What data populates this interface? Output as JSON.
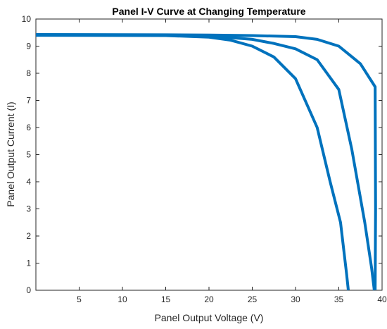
{
  "chart_data": {
    "type": "line",
    "title": "Panel I-V Curve at Changing Temperature",
    "xlabel": "Panel Output Voltage (V)",
    "ylabel": "Panel Output Current (I)",
    "xlim": [
      0,
      40
    ],
    "ylim": [
      0,
      10
    ],
    "xticks": [
      5,
      10,
      15,
      20,
      25,
      30,
      35,
      40
    ],
    "yticks": [
      0,
      1,
      2,
      3,
      4,
      5,
      6,
      7,
      8,
      9,
      10
    ],
    "grid": false,
    "line_color": "#0072BD",
    "series": [
      {
        "x": [
          0,
          15,
          20,
          22.5,
          25,
          27.5,
          30,
          32.5,
          34,
          35.2,
          35.9,
          36.1
        ],
        "y": [
          9.4,
          9.39,
          9.33,
          9.22,
          9.0,
          8.6,
          7.8,
          6.0,
          4.0,
          2.5,
          0.6,
          0
        ]
      },
      {
        "x": [
          0,
          15,
          20,
          25,
          27.5,
          30,
          32.5,
          35,
          36.5,
          38,
          38.8,
          39.1
        ],
        "y": [
          9.42,
          9.41,
          9.38,
          9.25,
          9.1,
          8.9,
          8.5,
          7.4,
          5.2,
          2.5,
          0.8,
          0
        ]
      },
      {
        "x": [
          0,
          15,
          20,
          25,
          30,
          32.5,
          35,
          37.5,
          39.2,
          39.25,
          39.2
        ],
        "y": [
          9.43,
          9.42,
          9.41,
          9.39,
          9.35,
          9.25,
          9.0,
          8.35,
          7.5,
          3.0,
          0
        ]
      }
    ]
  }
}
